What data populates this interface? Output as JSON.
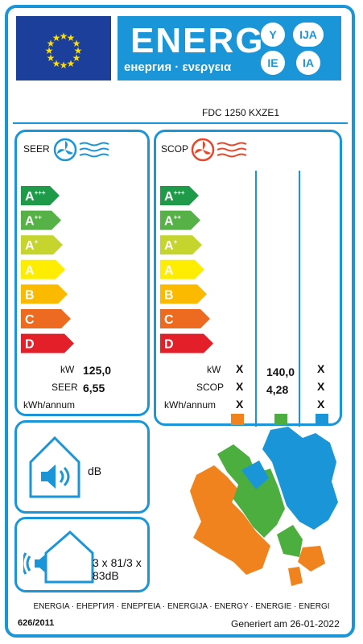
{
  "header": {
    "brand": "ENERG",
    "subtitle": "енергия · ενεργεια",
    "lang_badges": [
      "Y",
      "IJA",
      "IE",
      "IA"
    ]
  },
  "model": "FDC 1250 KXZE1",
  "cooling": {
    "title": "SEER",
    "classes": [
      "A+++",
      "A++",
      "A+",
      "A",
      "B",
      "C",
      "D"
    ],
    "labels": {
      "kw": "kW",
      "seer": "SEER",
      "kwh": "kWh/annum"
    },
    "values": {
      "kw": "125,0",
      "seer": "6,55"
    }
  },
  "heating": {
    "title": "SCOP",
    "classes": [
      "A+++",
      "A++",
      "A+",
      "A",
      "B",
      "C",
      "D"
    ],
    "labels": {
      "kw": "kW",
      "scop": "SCOP",
      "kwh": "kWh/annum"
    },
    "x_mark": "X",
    "values": {
      "kw": "140,0",
      "scop": "4,28"
    },
    "zone_colors": [
      "#f0831e",
      "#4cae3f",
      "#1a96d8"
    ]
  },
  "noise_indoor": {
    "unit": "dB"
  },
  "noise_outdoor": {
    "value": "3 x 81/3 x 83dB"
  },
  "footer": {
    "languages": "ENERGIA · ЕНЕРГИЯ · ΕΝΕΡΓΕΙΑ · ENERGIJA · ENERGY · ENERGIE · ENERGI",
    "regulation": "626/2011",
    "generated": "Generiert am 26-01-2022"
  },
  "colors": {
    "accent": "#1a96d8",
    "eu_blue": "#1b3f9b",
    "eu_star": "#ffdd00",
    "class_colors": [
      "#1f9a48",
      "#56b146",
      "#c6d52d",
      "#ffed00",
      "#fbba00",
      "#ec6b20",
      "#e3202a"
    ]
  }
}
